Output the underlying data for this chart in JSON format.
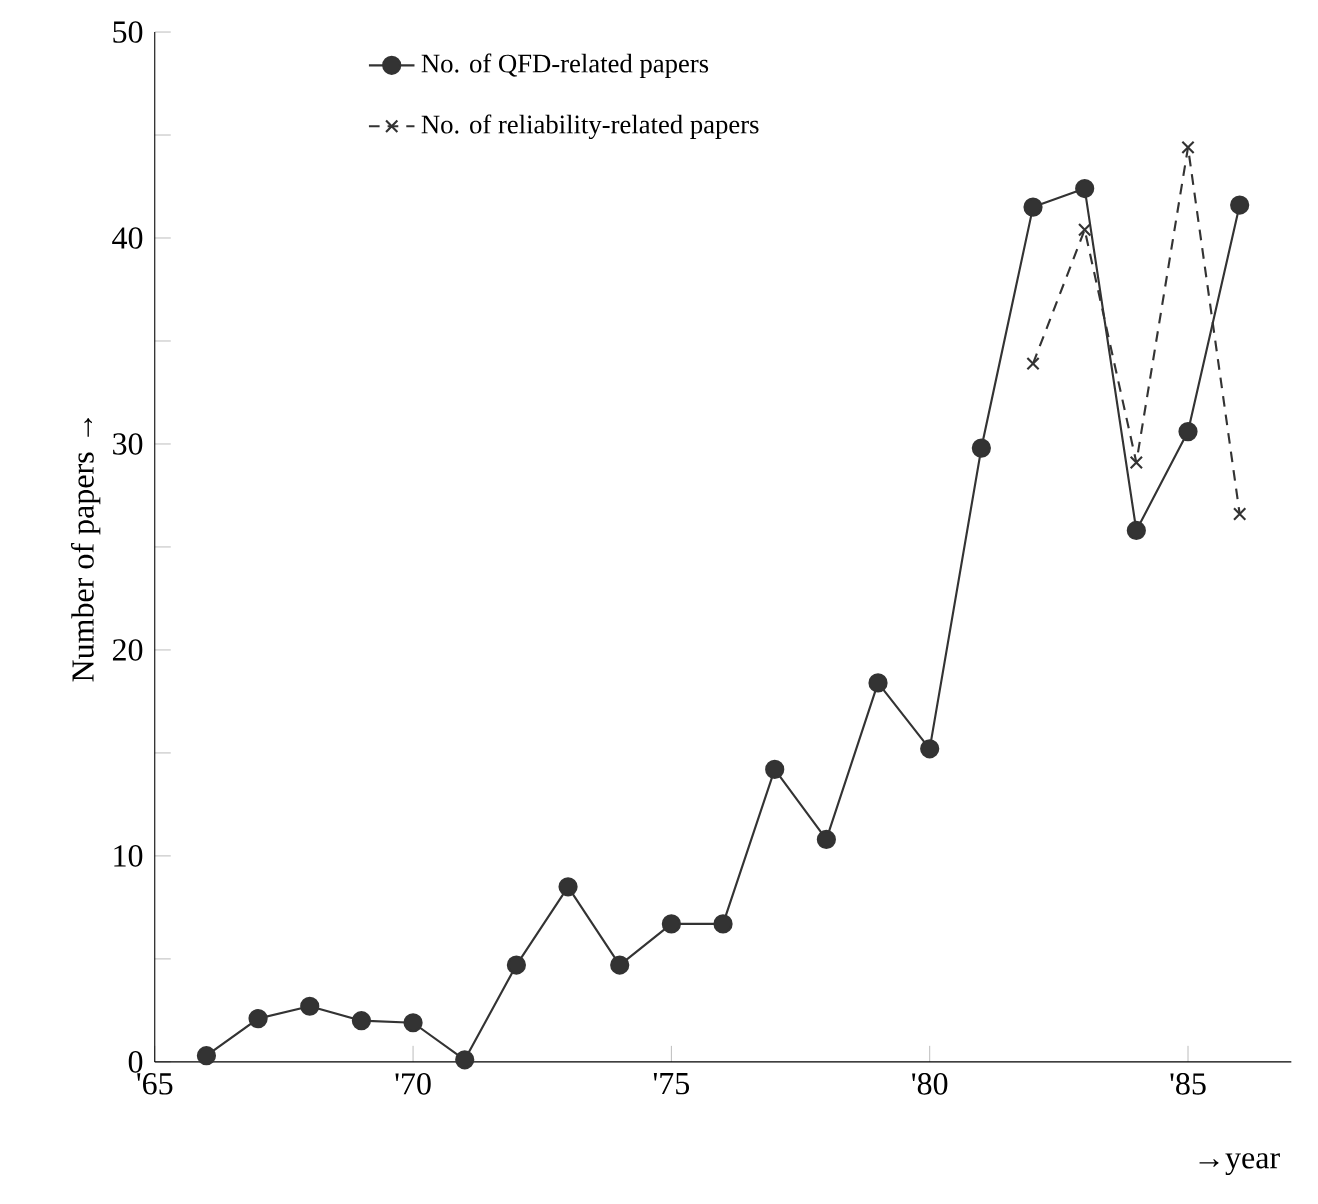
{
  "chart_data": {
    "type": "line",
    "xlabel": "→year",
    "ylabel": "Number of papers →",
    "xlim": [
      1965,
      1987
    ],
    "xticks": [
      {
        "value": 1965,
        "label": "'65"
      },
      {
        "value": 1970,
        "label": "'70"
      },
      {
        "value": 1975,
        "label": "'75"
      },
      {
        "value": 1980,
        "label": "'80"
      },
      {
        "value": 1985,
        "label": "'85"
      }
    ],
    "ylim": [
      0,
      50
    ],
    "yticks": [
      0,
      {
        "value": 5,
        "label": null
      },
      10,
      {
        "value": 15,
        "label": null
      },
      20,
      {
        "value": 25,
        "label": null
      },
      30,
      {
        "value": 35,
        "label": null
      },
      40,
      {
        "value": 45,
        "label": null
      },
      50
    ],
    "legend": "top",
    "grid": false,
    "series": [
      {
        "name": "No. of QFD-related papers",
        "color": "#333333",
        "marker": "circle",
        "line_style": "solid",
        "x": [
          1966,
          1967,
          1968,
          1969,
          1970,
          1971,
          1972,
          1973,
          1974,
          1975,
          1976,
          1977,
          1978,
          1979,
          1980,
          1981,
          1982,
          1983,
          1984,
          1985,
          1986
        ],
        "values": [
          0.3,
          2.1,
          2.7,
          2.0,
          1.9,
          0.1,
          4.7,
          8.5,
          4.7,
          6.7,
          6.7,
          14.2,
          10.8,
          18.4,
          15.2,
          29.8,
          41.5,
          42.4,
          25.8,
          30.6,
          41.6
        ]
      },
      {
        "name": "No. of reliability-related papers",
        "color": "#333333",
        "marker": "cross",
        "line_style": "dashed",
        "x": [
          1982,
          1983,
          1984,
          1985,
          1986
        ],
        "values": [
          33.9,
          40.4,
          29.1,
          44.4,
          26.6
        ]
      }
    ]
  }
}
